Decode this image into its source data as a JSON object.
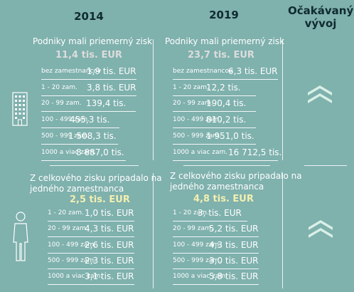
{
  "headers": {
    "year_2014": "2014",
    "year_2019": "2019",
    "expected_line1": "Očakávaný",
    "expected_line2": "vývoj"
  },
  "top": {
    "left": {
      "title": "Podniky mali priemerný zisk",
      "total": "11,4 tis. EUR",
      "rows": [
        {
          "label": "bez zamestnancov",
          "value": "1,9 tis. EUR"
        },
        {
          "label": "1 - 20 zam.",
          "value": "3,8 tis. EUR"
        },
        {
          "label": "20 - 99 zam.",
          "value": "139,4 tis."
        },
        {
          "label": "100 - 499 zam.",
          "value": "455,3 tis."
        },
        {
          "label": "500 - 999 zam.",
          "value": "1 508,3 tis."
        },
        {
          "label": "1000 a viac zam.",
          "value": "8 887,0 tis."
        }
      ]
    },
    "right": {
      "title": "Podniky mali priemerný zisk",
      "total": "23,7 tis. EUR",
      "rows": [
        {
          "label": "bez zamestnancov",
          "value": "6,3 tis. EUR"
        },
        {
          "label": "1 - 20 zam.",
          "value": "12,2 tis."
        },
        {
          "label": "20 - 99 zam.",
          "value": "190,4 tis."
        },
        {
          "label": "100 - 499 zam.",
          "value": "810,2 tis."
        },
        {
          "label": "500 - 999 zam.",
          "value": "1 951,0 tis."
        },
        {
          "label": "1000 a viac zam.",
          "value": "16 712,5 tis."
        }
      ]
    }
  },
  "bottom": {
    "left": {
      "title_line1": "Z celkového zisku pripadalo na",
      "title_line2": "jedného zamestnanca",
      "total": "2,5 tis. EUR",
      "rows": [
        {
          "label": "1 - 20 zam.",
          "value": "1,0 tis. EUR"
        },
        {
          "label": "20 - 99 zam.",
          "value": "4,3 tis. EUR"
        },
        {
          "label": "100 - 499 zam.",
          "value": "2,6 tis. EUR"
        },
        {
          "label": "500 - 999 zam.",
          "value": "2,3 tis. EUR"
        },
        {
          "label": "1000 a viac zam.",
          "value": "3,1 tis. EUR"
        }
      ]
    },
    "right": {
      "title_line1": "Z celkového zisku pripadalo na",
      "title_line2": "jedného zamestnanca",
      "total": "4,8 tis. EUR",
      "rows": [
        {
          "label": "1 - 20 zam.",
          "value": "3, tis. EUR"
        },
        {
          "label": "20 - 99 zam.",
          "value": "5,2 tis. EUR"
        },
        {
          "label": "100 - 499 zam.",
          "value": "4,3 tis. EUR"
        },
        {
          "label": "500 - 999 zam.",
          "value": "3,0 tis. EUR"
        },
        {
          "label": "1000 a viac zam.",
          "value": "5,8 tis. EUR"
        }
      ]
    }
  },
  "icons": {
    "top": "building-icon",
    "bottom": "person-icon",
    "trend_top": "double-chevron-up-icon",
    "trend_bottom": "double-chevron-up-icon"
  },
  "colors": {
    "background": "#7fb1ad",
    "total_gray": "#dcdcdc",
    "total_yellow": "#f3efb0",
    "chevron": "#d9f0e6"
  }
}
